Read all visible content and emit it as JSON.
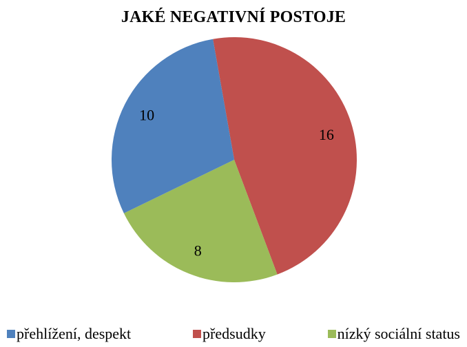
{
  "colors": {
    "blue": "#4f81bd",
    "red": "#c0504d",
    "green": "#9bbb59"
  },
  "chart_data": {
    "type": "pie",
    "title": "JAKÉ NEGATIVNÍ POSTOJE",
    "legend_position": "bottom",
    "slices": [
      {
        "label": "předsudky",
        "value": 16,
        "color": "#c0504d"
      },
      {
        "label": "nízký sociální status",
        "value": 8,
        "color": "#9bbb59"
      },
      {
        "label": "přehlížení, despekt",
        "value": 10,
        "color": "#4f81bd"
      }
    ],
    "legend": [
      {
        "label": "přehlížení, despekt",
        "color": "#4f81bd"
      },
      {
        "label": "předsudky",
        "color": "#c0504d"
      },
      {
        "label": "nízký sociální status",
        "color": "#9bbb59"
      }
    ]
  }
}
